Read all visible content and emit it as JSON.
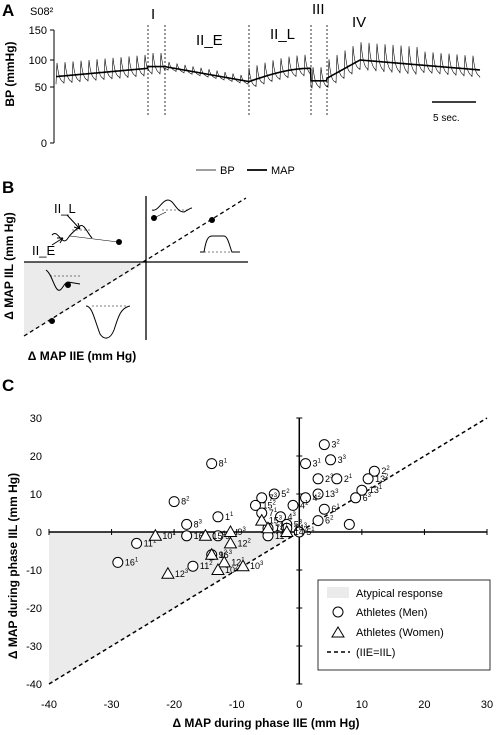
{
  "panels": {
    "a": "A",
    "b": "B",
    "c": "C"
  },
  "panel_a": {
    "subject": "S08²",
    "phases": [
      "I",
      "II_E",
      "II_L",
      "III",
      "IV"
    ],
    "ylabel": "BP (mmHg)",
    "yticks": [
      "150",
      "100",
      "50",
      "0"
    ],
    "scale_bar": "5 sec.",
    "legend": {
      "bp": "BP",
      "map": "MAP"
    }
  },
  "panel_b": {
    "ylabel": "Δ MAP IIL (mm Hg)",
    "xlabel": "Δ MAP IIE (mm Hg)",
    "labels": {
      "iil": "II_L",
      "iie": "II_E"
    }
  },
  "chart_data": {
    "type": "scatter",
    "xlabel": "Δ MAP during phase IIE (mm Hg)",
    "ylabel": "Δ MAP during phase IIL (mm Hg)",
    "xlim": [
      -40,
      30
    ],
    "ylim": [
      -40,
      30
    ],
    "xticks": [
      -40,
      -30,
      -20,
      -10,
      0,
      10,
      20,
      30
    ],
    "yticks": [
      -40,
      -30,
      -20,
      -10,
      0,
      10,
      20,
      30
    ],
    "legend": {
      "placement": "bottom-right",
      "items": [
        "Atypical response",
        "Athletes (Men)",
        "Athletes (Women)",
        "(IIE=IIL)"
      ]
    },
    "reference_line": {
      "name": "(IIE=IIL)",
      "x": [
        -40,
        30
      ],
      "y": [
        -40,
        30
      ]
    },
    "series": [
      {
        "name": "Athletes (Men)",
        "marker": "circle",
        "points": [
          {
            "x": -14,
            "y": 18,
            "label": "8",
            "sup": "1"
          },
          {
            "x": 4,
            "y": 23,
            "label": "3",
            "sup": "2"
          },
          {
            "x": 5,
            "y": 19,
            "label": "3",
            "sup": "3"
          },
          {
            "x": 1,
            "y": 18,
            "label": "3",
            "sup": "1"
          },
          {
            "x": 12,
            "y": 16,
            "label": "2",
            "sup": "2"
          },
          {
            "x": 3,
            "y": 14,
            "label": "2",
            "sup": "3"
          },
          {
            "x": 6,
            "y": 14,
            "label": "2",
            "sup": "1"
          },
          {
            "x": 11,
            "y": 14,
            "label": "13",
            "sup": "2"
          },
          {
            "x": 10,
            "y": 11,
            "label": "13",
            "sup": "1"
          },
          {
            "x": 9,
            "y": 9,
            "label": "6",
            "sup": "3"
          },
          {
            "x": 3,
            "y": 10,
            "label": "13",
            "sup": "3"
          },
          {
            "x": 1,
            "y": 9,
            "label": "4",
            "sup": "2"
          },
          {
            "x": 4,
            "y": 6,
            "label": "6",
            "sup": "1"
          },
          {
            "x": -4,
            "y": 10,
            "label": "5",
            "sup": "2"
          },
          {
            "x": -6,
            "y": 9,
            "label": "7",
            "sup": "3"
          },
          {
            "x": -7,
            "y": 7,
            "label": "15",
            "sup": "2"
          },
          {
            "x": -1,
            "y": 7,
            "label": "4",
            "sup": "1"
          },
          {
            "x": -6,
            "y": 5,
            "label": "7",
            "sup": "1"
          },
          {
            "x": -3,
            "y": 4,
            "label": "4",
            "sup": "3"
          },
          {
            "x": 3,
            "y": 3,
            "label": "6",
            "sup": "2"
          },
          {
            "x": -2,
            "y": 2,
            "label": "5",
            "sup": "3"
          },
          {
            "x": 0,
            "y": 0,
            "label": "5",
            "sup": "1"
          },
          {
            "x": -20,
            "y": 8,
            "label": "8",
            "sup": "2"
          },
          {
            "x": -13,
            "y": 4,
            "label": "1",
            "sup": "1"
          },
          {
            "x": -18,
            "y": 2,
            "label": "8",
            "sup": "3"
          },
          {
            "x": -5,
            "y": 1,
            "label": "7",
            "sup": "2"
          },
          {
            "x": -5,
            "y": -1,
            "label": "11",
            "sup": "3"
          },
          {
            "x": -26,
            "y": -3,
            "label": "11",
            "sup": "1"
          },
          {
            "x": -29,
            "y": -8,
            "label": "16",
            "sup": "1"
          },
          {
            "x": -18,
            "y": -1,
            "label": "16",
            "sup": "2"
          },
          {
            "x": -14,
            "y": -6,
            "label": "16",
            "sup": "3"
          },
          {
            "x": -17,
            "y": -9,
            "label": "11",
            "sup": "2"
          },
          {
            "x": -13,
            "y": -1,
            "label": "9",
            "sup": "1"
          },
          {
            "x": -2,
            "y": 1,
            "label": "14",
            "sup": "3"
          },
          {
            "x": 8,
            "y": 2,
            "label": "",
            "sup": ""
          }
        ]
      },
      {
        "name": "Athletes (Women)",
        "marker": "triangle",
        "points": [
          {
            "x": -23,
            "y": -1,
            "label": "10",
            "sup": "1"
          },
          {
            "x": -15,
            "y": -1,
            "label": "15",
            "sup": "1"
          },
          {
            "x": -11,
            "y": 0,
            "label": "9",
            "sup": "3"
          },
          {
            "x": -11,
            "y": -3,
            "label": "12",
            "sup": "2"
          },
          {
            "x": -14,
            "y": -6,
            "label": "9",
            "sup": "2"
          },
          {
            "x": -12,
            "y": -8,
            "label": "12",
            "sup": "1"
          },
          {
            "x": -13,
            "y": -10,
            "label": "10",
            "sup": "2"
          },
          {
            "x": -9,
            "y": -9,
            "label": "10",
            "sup": "3"
          },
          {
            "x": -21,
            "y": -11,
            "label": "12",
            "sup": "3"
          },
          {
            "x": -6,
            "y": 3,
            "label": "15",
            "sup": "3"
          },
          {
            "x": -5,
            "y": 1,
            "label": "14",
            "sup": "1"
          },
          {
            "x": -2,
            "y": 0,
            "label": "14",
            "sup": "2"
          }
        ]
      }
    ]
  }
}
